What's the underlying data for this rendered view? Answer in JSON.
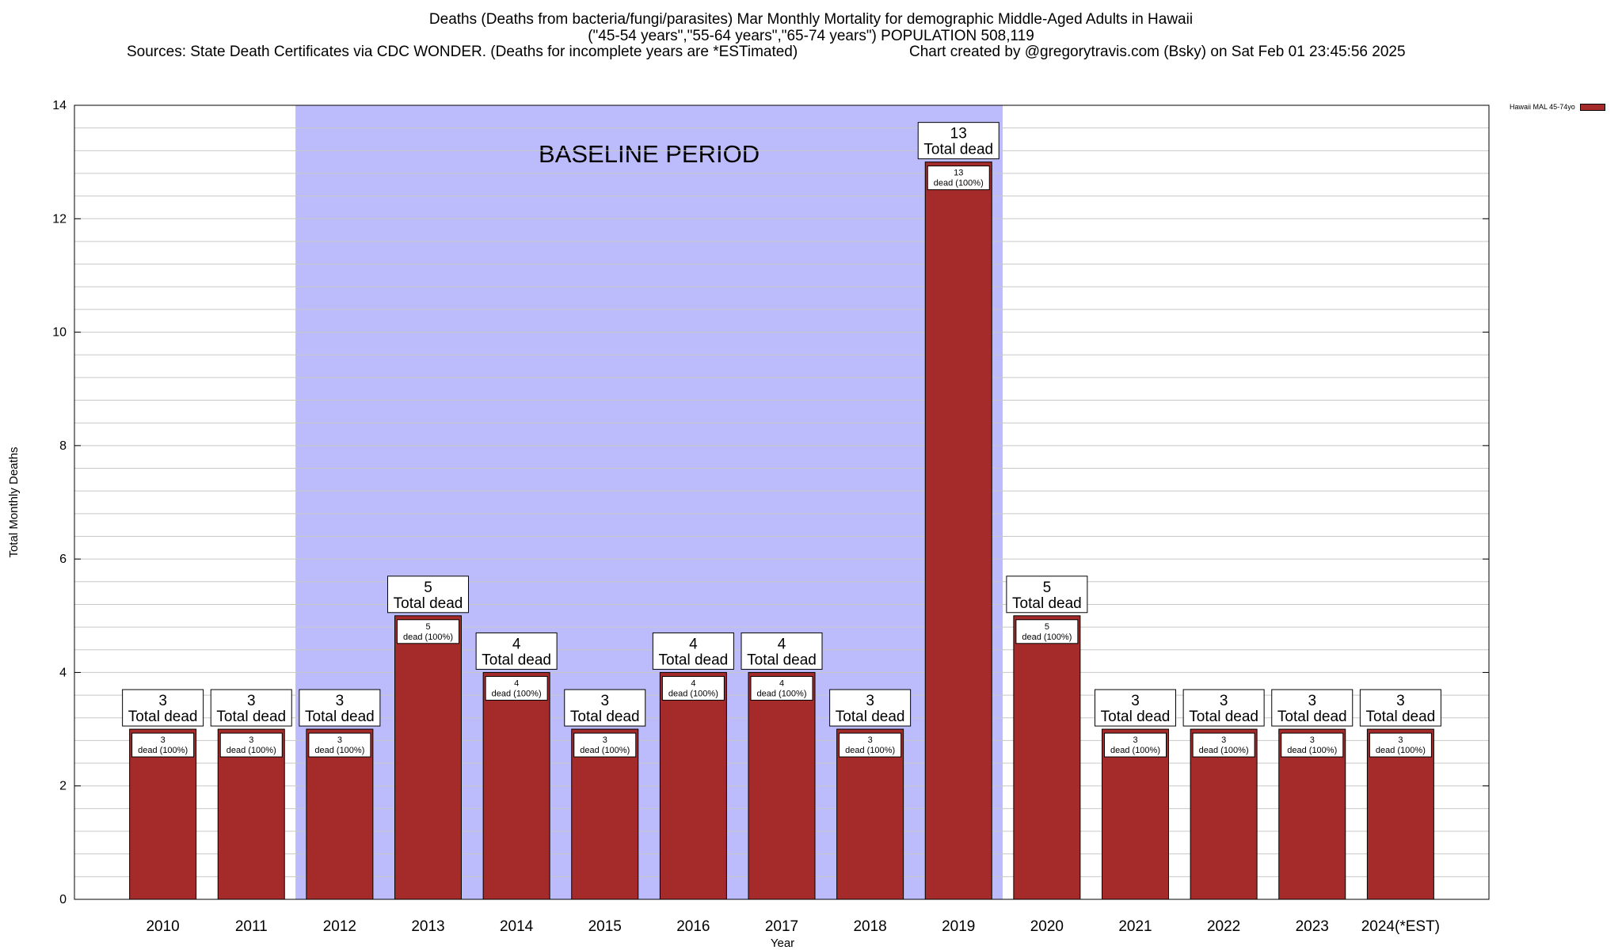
{
  "title_lines": [
    "Deaths (Deaths from bacteria/fungi/parasites) Mar Monthly Mortality for demographic Middle-Aged Adults in Hawaii",
    "(\"45-54 years\",\"55-64 years\",\"65-74 years\") POPULATION 508,119"
  ],
  "sources": "Sources: State Death Certificates via CDC WONDER. (Deaths for incomplete years are *ESTimated)",
  "credit": "Chart created by @gregorytravis.com (Bsky) on Sat Feb 01 23:45:56 2025",
  "chart_data": {
    "type": "bar",
    "xlabel": "Year",
    "ylabel": "Total Monthly Deaths",
    "ylim": [
      0,
      14
    ],
    "yticks": [
      0,
      2,
      4,
      6,
      8,
      10,
      12,
      14
    ],
    "categories": [
      "2010",
      "2011",
      "2012",
      "2013",
      "2014",
      "2015",
      "2016",
      "2017",
      "2018",
      "2019",
      "2020",
      "2021",
      "2022",
      "2023",
      "2024(*EST)"
    ],
    "series": [
      {
        "name": "Hawaii MAL 45-74yo",
        "color": "#a52a2a",
        "values": [
          3,
          3,
          3,
          5,
          4,
          3,
          4,
          4,
          3,
          13,
          5,
          3,
          3,
          3,
          3
        ]
      }
    ],
    "total_label_suffix": "Total dead",
    "bar_label_suffix": "dead (100%)",
    "baseline": {
      "label": "BASELINE PERIOD",
      "from": "2012",
      "to": "2019",
      "color": "#bcbcfc"
    },
    "grid": true,
    "legend_position": "top-right"
  }
}
